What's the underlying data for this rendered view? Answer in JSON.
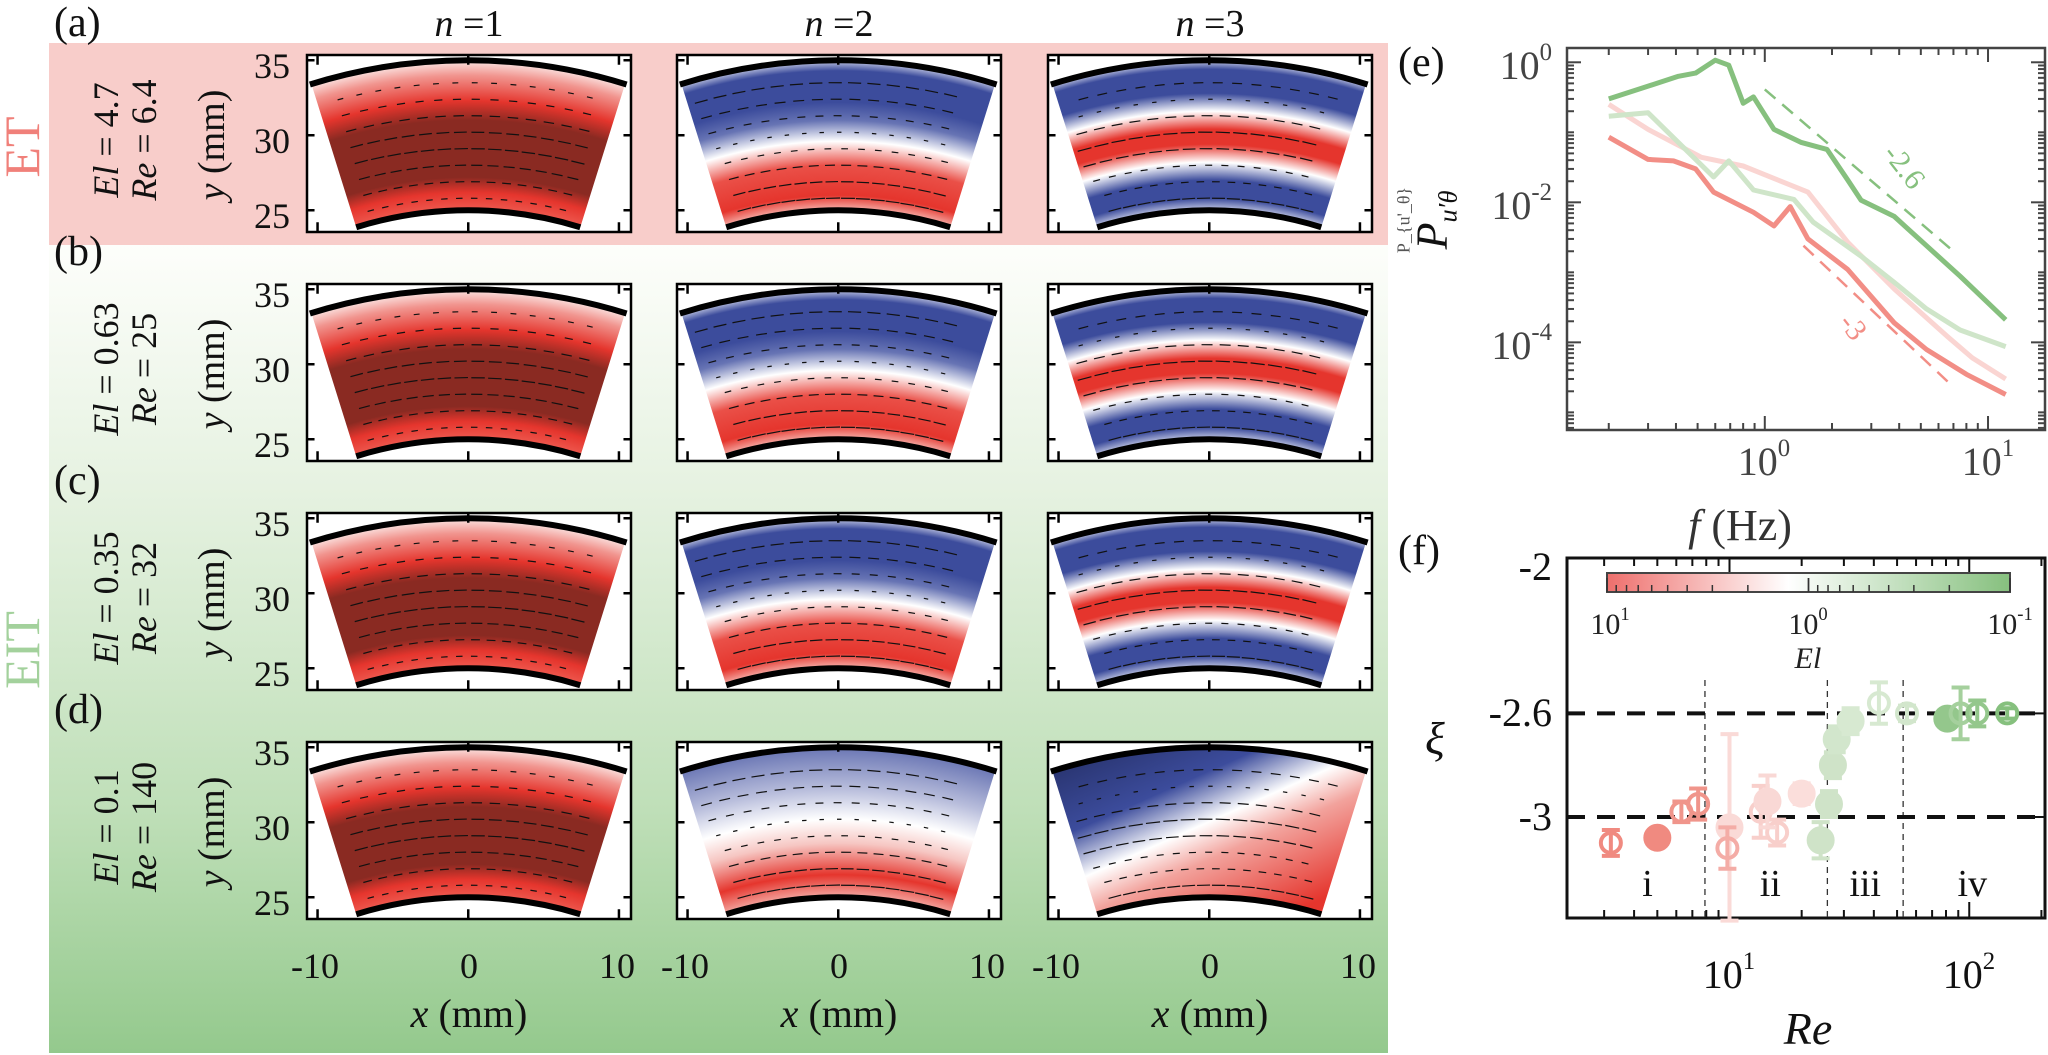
{
  "figure": {
    "panel_labels": {
      "a": "(a)",
      "b": "(b)",
      "c": "(c)",
      "d": "(d)",
      "e": "(e)",
      "f": "(f)"
    },
    "regimes": {
      "et": "ET",
      "eit": "EIT"
    },
    "regime_colors": {
      "et_band": "#f8cdca",
      "et_text": "#f0807a",
      "eit_text": "#a3d19c",
      "eit_band_bottom": "#94c98d"
    },
    "columns": [
      {
        "var": "n",
        "eq": " =",
        "val": "1"
      },
      {
        "var": "n",
        "eq": " =",
        "val": "2"
      },
      {
        "var": "n",
        "eq": " =",
        "val": "3"
      }
    ],
    "rows": [
      {
        "el_label": "El",
        "el_value": " = 4.7",
        "re_label": "Re",
        "re_value": " = 6.4"
      },
      {
        "el_label": "El",
        "el_value": " = 0.63",
        "re_label": "Re",
        "re_value": " = 25"
      },
      {
        "el_label": "El",
        "el_value": " = 0.35",
        "re_label": "Re",
        "re_value": " = 32"
      },
      {
        "el_label": "El",
        "el_value": " = 0.1",
        "re_label": "Re",
        "re_value": " = 140"
      }
    ],
    "field_axes": {
      "ylabel_var": "y",
      "ylabel_unit": " (mm)",
      "xlabel_var": "x",
      "xlabel_unit": " (mm)",
      "yticks": [
        "35",
        "30",
        "25"
      ],
      "xticks": [
        "-10",
        "0",
        "10"
      ]
    },
    "colormap": {
      "red": "#e5352d",
      "dark_red": "#8a2a22",
      "white": "#ffffff",
      "blue": "#3c4c9c"
    }
  },
  "chart_data": [
    {
      "id": "e",
      "type": "line",
      "xscale": "log",
      "yscale": "log",
      "xlabel_var": "f",
      "xlabel_unit": " (Hz)",
      "ylabel": "P_{u'_θ}",
      "ylabel_base": "P",
      "ylabel_sub": "u′θ",
      "xlim": [
        0.13,
        18
      ],
      "ylim": [
        5.6e-06,
        1.6
      ],
      "xticks": [
        {
          "base": "10",
          "exp": "0",
          "value": 1
        },
        {
          "base": "10",
          "exp": "1",
          "value": 10
        }
      ],
      "yticks": [
        {
          "base": "10",
          "exp": "0",
          "value": 1
        },
        {
          "base": "10",
          "exp": "-2",
          "value": 0.01
        },
        {
          "base": "10",
          "exp": "-4",
          "value": 0.0001
        }
      ],
      "grid": false,
      "series": [
        {
          "color": "#fad5d2",
          "x": [
            0.2,
            0.3,
            0.52,
            0.8,
            1.56,
            2.35,
            3.8,
            6.6,
            8.5,
            12
          ],
          "y": [
            0.25,
            0.11,
            0.044,
            0.033,
            0.014,
            0.0027,
            0.00058,
            0.00012,
            6e-05,
            3e-05
          ]
        },
        {
          "color": "#f28e86",
          "x": [
            0.2,
            0.3,
            0.39,
            0.49,
            0.59,
            0.89,
            1.1,
            1.3,
            1.56,
            2.35,
            3.8,
            5.3,
            8,
            12
          ],
          "y": [
            0.085,
            0.041,
            0.039,
            0.03,
            0.014,
            0.0072,
            0.0046,
            0.0087,
            0.003,
            0.0011,
            0.00019,
            7.9e-05,
            3.5e-05,
            1.8e-05
          ]
        },
        {
          "color": "#cfe5c9",
          "x": [
            0.2,
            0.3,
            0.59,
            0.69,
            0.89,
            1.35,
            1.65,
            2.7,
            3.8,
            5.3,
            7.5,
            12
          ],
          "y": [
            0.17,
            0.19,
            0.023,
            0.039,
            0.015,
            0.011,
            0.0052,
            0.0017,
            0.00072,
            0.0003,
            0.00015,
            8.7e-05
          ]
        },
        {
          "color": "#86c07e",
          "x": [
            0.2,
            0.41,
            0.49,
            0.6,
            0.69,
            0.8,
            0.89,
            1.1,
            1.45,
            1.9,
            2.35,
            2.7,
            3.8,
            5.3,
            7.5,
            12
          ],
          "y": [
            0.3,
            0.63,
            0.7,
            1.07,
            0.91,
            0.26,
            0.32,
            0.11,
            0.072,
            0.057,
            0.021,
            0.0107,
            0.0063,
            0.0024,
            0.00088,
            0.00021
          ]
        }
      ],
      "reference_lines": [
        {
          "slope_label": "-2.6",
          "color": "#86c07e",
          "x": [
            1.0,
            7.0
          ],
          "y": [
            0.41,
            0.002
          ],
          "label_at": [
            3.7,
            0.03
          ]
        },
        {
          "slope_label": "-3",
          "color": "#f28e86",
          "x": [
            1.49,
            7.0
          ],
          "y": [
            0.0024,
            2.3e-05
          ],
          "label_at": [
            2.55,
            0.00014
          ]
        }
      ]
    },
    {
      "id": "f",
      "type": "scatter",
      "xscale": "log",
      "xlabel": "Re",
      "ylabel": "ξ",
      "xlim": [
        2.1,
        207
      ],
      "ylim": [
        -3.39,
        -2
      ],
      "xticks": [
        {
          "base": "10",
          "exp": "1",
          "value": 10
        },
        {
          "base": "10",
          "exp": "2",
          "value": 100
        }
      ],
      "yticks": [
        {
          "label": "-2",
          "value": -2
        },
        {
          "label": "-2.6",
          "value": -2.6
        },
        {
          "label": "-3",
          "value": -3
        }
      ],
      "hlines": [
        -2.6,
        -3
      ],
      "vlines": [
        7.9,
        25.6,
        53
      ],
      "regions": [
        {
          "label": "i",
          "x": 4.55
        },
        {
          "label": "ii",
          "x": 14.8
        },
        {
          "label": "iii",
          "x": 36.8
        },
        {
          "label": "iv",
          "x": 103
        }
      ],
      "region_label_y": -3.26,
      "colorbar": {
        "label": "El",
        "ticks": [
          {
            "base": "10",
            "exp": "1"
          },
          {
            "base": "10",
            "exp": "0"
          },
          {
            "base": "10",
            "exp": "-1"
          }
        ],
        "colors": [
          "#ee6f6c",
          "#ffffff",
          "#86c07e"
        ],
        "range": [
          10,
          0.1
        ],
        "scale": "log"
      },
      "points": [
        {
          "x": 3.2,
          "y": -3.1,
          "err": 0.05,
          "filled": false,
          "color": "#f08a80"
        },
        {
          "x": 5.0,
          "y": -3.08,
          "err": 0,
          "filled": true,
          "color": "#f08a80"
        },
        {
          "x": 6.3,
          "y": -2.98,
          "err": 0.04,
          "filled": false,
          "color": "#f0958b"
        },
        {
          "x": 7.4,
          "y": -2.95,
          "err": 0.06,
          "filled": false,
          "color": "#f0958b"
        },
        {
          "x": 10,
          "y": -3.04,
          "err": 0.36,
          "filled": true,
          "color": "#fadad7"
        },
        {
          "x": 9.8,
          "y": -3.12,
          "err": 0.08,
          "filled": false,
          "color": "#f4aca6"
        },
        {
          "x": 13.5,
          "y": -2.98,
          "err": 0.1,
          "filled": false,
          "color": "#f8cfcb"
        },
        {
          "x": 15.8,
          "y": -3.06,
          "err": 0.05,
          "filled": false,
          "color": "#f8cfcb"
        },
        {
          "x": 14.4,
          "y": -2.94,
          "err": 0.1,
          "filled": true,
          "color": "#f9d8d5"
        },
        {
          "x": 20,
          "y": -2.91,
          "err": 0.04,
          "filled": true,
          "color": "#fbdedb"
        },
        {
          "x": 24,
          "y": -3.09,
          "err": 0.07,
          "filled": true,
          "color": "#cfe3c8"
        },
        {
          "x": 26,
          "y": -2.95,
          "err": 0.05,
          "filled": true,
          "color": "#cfe3c8"
        },
        {
          "x": 27,
          "y": -2.8,
          "err": 0.05,
          "filled": true,
          "color": "#cfe3c8"
        },
        {
          "x": 28,
          "y": -2.7,
          "err": 0.05,
          "filled": true,
          "color": "#d2e6cc"
        },
        {
          "x": 32,
          "y": -2.63,
          "err": 0.05,
          "filled": true,
          "color": "#d7e9d1"
        },
        {
          "x": 42,
          "y": -2.56,
          "err": 0.08,
          "filled": false,
          "color": "#d7e9d1"
        },
        {
          "x": 55,
          "y": -2.6,
          "err": 0.03,
          "filled": false,
          "color": "#d2e6cc"
        },
        {
          "x": 81,
          "y": -2.62,
          "err": 0.03,
          "filled": true,
          "color": "#94c78c"
        },
        {
          "x": 92,
          "y": -2.6,
          "err": 0.1,
          "filled": false,
          "color": "#a5d09d"
        },
        {
          "x": 108,
          "y": -2.6,
          "err": 0.05,
          "filled": false,
          "color": "#94c78c"
        },
        {
          "x": 144,
          "y": -2.6,
          "err": 0.02,
          "filled": false,
          "color": "#86c07e"
        }
      ]
    }
  ]
}
